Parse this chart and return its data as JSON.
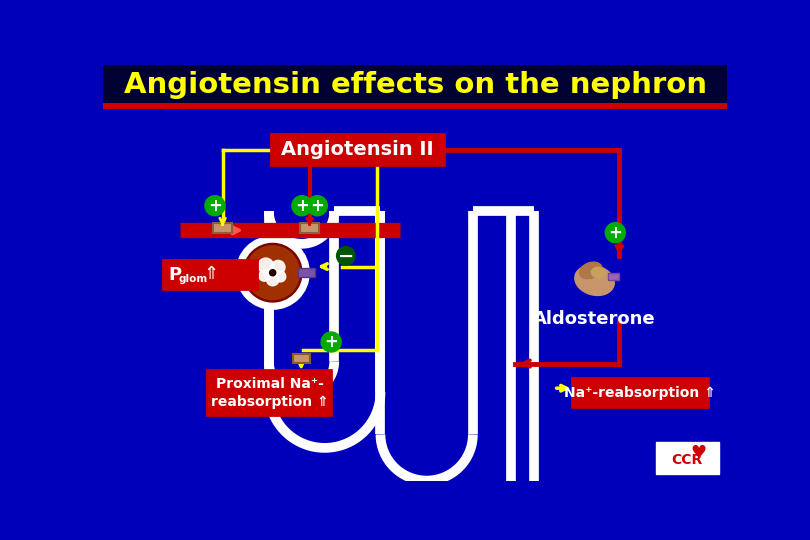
{
  "title": "Angiotensin effects on the nephron",
  "title_color": "#FFFF00",
  "title_bg": "#000033",
  "bg_color": "#0000BB",
  "RED": "#CC0000",
  "YELLOW": "#FFFF00",
  "GREEN": "#00AA00",
  "WHITE": "#FFFFFF",
  "ang2_text": "Angiotensin II",
  "aldo_text": "Aldosterone",
  "proximal_text": "Proximal Na⁺-\nreabsorption ⇑",
  "na_reabs_text": "Na⁺-reabsorption ⇑",
  "pglom_text": "P",
  "pglom_sub": "glom",
  "pglom_arrow": "⇑"
}
